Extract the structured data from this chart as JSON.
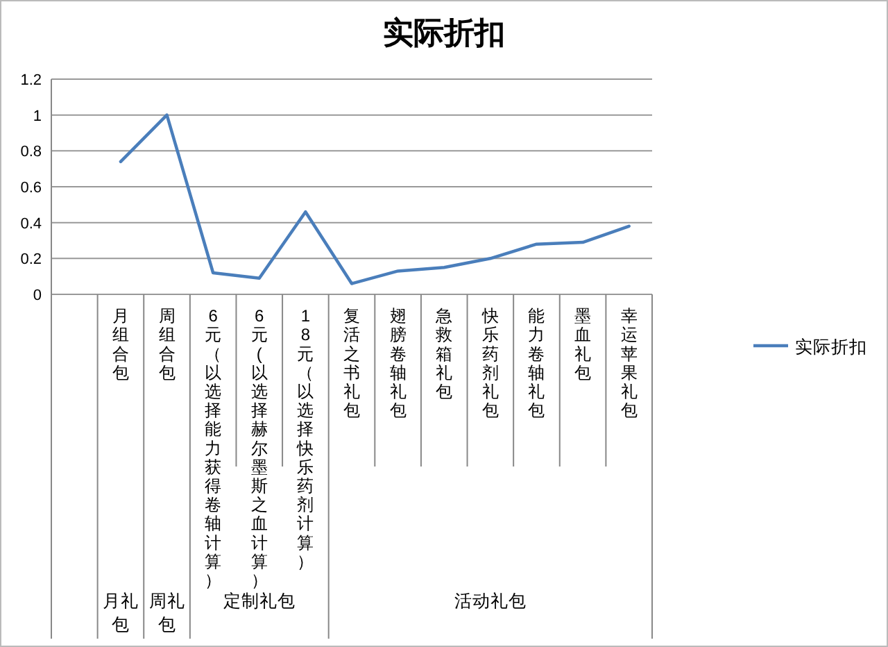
{
  "chart_data": {
    "type": "line",
    "title": "实际折扣",
    "categories": [
      null,
      "月组合包",
      "周组合包",
      "6元（以选择能力获得卷轴计算）",
      "6元(以选择赫尔墨斯之血计算）",
      "18元（以选择快乐药剂计算）",
      "复活之书礼包",
      "翅膀卷轴礼包",
      "急救箱礼包",
      "快乐药剂礼包",
      "能力卷轴礼包",
      "墨血礼包",
      "幸运苹果礼包"
    ],
    "series": [
      {
        "name": "实际折扣",
        "color": "#4a7ebb",
        "values": [
          null,
          0.74,
          1.0,
          0.12,
          0.09,
          0.46,
          0.06,
          0.13,
          0.15,
          0.2,
          0.28,
          0.29,
          0.38
        ]
      }
    ],
    "annotations": [
      "月礼包",
      "周礼包",
      "定制礼包",
      "活动礼包"
    ],
    "ylim": [
      0,
      1.2
    ],
    "yticks": [
      0,
      0.2,
      0.4,
      0.6,
      0.8,
      1,
      1.2
    ],
    "grid": "y",
    "legend": "right",
    "marker": "none"
  }
}
